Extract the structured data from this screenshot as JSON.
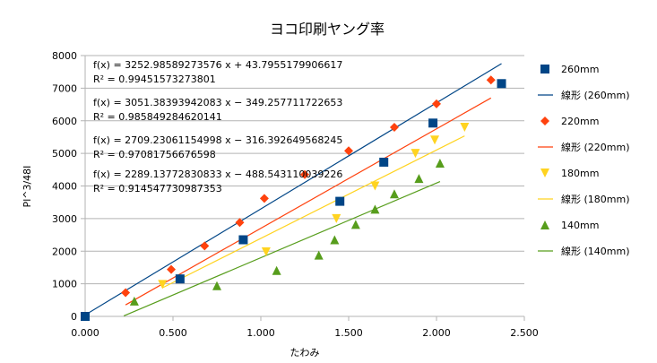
{
  "chart_data": {
    "type": "scatter",
    "title": "ヨコ印刷ヤング率",
    "xlabel": "たわみ",
    "ylabel": "Pl^3/48I",
    "xlim": [
      0,
      2.5
    ],
    "ylim": [
      0,
      8000
    ],
    "x_ticks": [
      "0.000",
      "0.500",
      "1.000",
      "1.500",
      "2.000",
      "2.500"
    ],
    "y_ticks": [
      "0",
      "1000",
      "2000",
      "3000",
      "4000",
      "5000",
      "6000",
      "7000",
      "8000"
    ],
    "grid": "horizontal",
    "legend_position": "right",
    "series": [
      {
        "name": "260mm",
        "marker": "square",
        "color": "#004586",
        "points": [
          [
            0.0,
            0
          ],
          [
            0.54,
            1150
          ],
          [
            0.9,
            2350
          ],
          [
            1.45,
            3530
          ],
          [
            1.7,
            4730
          ],
          [
            1.98,
            5930
          ],
          [
            2.37,
            7140
          ]
        ],
        "trend": {
          "name": "線形  (260mm)",
          "slope": 3252.98589273576,
          "intercept": 43.7955179906617,
          "x_range": [
            0.0,
            2.37
          ],
          "equation": "f(x) = 3252.98589273576 x + 43.7955179906617",
          "r2": "R² = 0.99451573273801"
        }
      },
      {
        "name": "220mm",
        "marker": "diamond",
        "color": "#ff420e",
        "points": [
          [
            0.23,
            730
          ],
          [
            0.49,
            1440
          ],
          [
            0.68,
            2160
          ],
          [
            0.88,
            2880
          ],
          [
            1.02,
            3620
          ],
          [
            1.25,
            4350
          ],
          [
            1.5,
            5080
          ],
          [
            1.76,
            5800
          ],
          [
            2.0,
            6520
          ],
          [
            2.31,
            7250
          ]
        ],
        "trend": {
          "name": "線形  (220mm)",
          "slope": 3051.38393942083,
          "intercept": -349.257711722653,
          "x_range": [
            0.23,
            2.31
          ],
          "equation": "f(x) = 3051.38393942083 x − 349.257711722653",
          "r2": "R² = 0.985849284620141"
        }
      },
      {
        "name": "180mm",
        "marker": "triangle-down",
        "color": "#ffd320",
        "points": [
          [
            0.44,
            980
          ],
          [
            1.03,
            1980
          ],
          [
            1.43,
            3000
          ],
          [
            1.65,
            4000
          ],
          [
            1.88,
            5000
          ],
          [
            1.99,
            5410
          ],
          [
            2.16,
            5800
          ]
        ],
        "trend": {
          "name": "線形  (180mm)",
          "slope": 2709.23061154998,
          "intercept": -316.392649568245,
          "x_range": [
            0.44,
            2.16
          ],
          "equation": "f(x) = 2709.23061154998 x − 316.392649568245",
          "r2": "R² = 0.97081756676598"
        }
      },
      {
        "name": "140mm",
        "marker": "triangle-up",
        "color": "#579d1c",
        "points": [
          [
            0.28,
            470
          ],
          [
            0.75,
            940
          ],
          [
            1.09,
            1410
          ],
          [
            1.33,
            1880
          ],
          [
            1.42,
            2350
          ],
          [
            1.54,
            2820
          ],
          [
            1.65,
            3290
          ],
          [
            1.76,
            3760
          ],
          [
            1.9,
            4230
          ],
          [
            2.02,
            4700
          ]
        ],
        "trend": {
          "name": "線形  (140mm)",
          "slope": 2289.13772830833,
          "intercept": -488.543110039226,
          "x_range": [
            0.22,
            2.02
          ],
          "equation": "f(x) = 2289.13772830833 x − 488.543110039226",
          "r2": "R² = 0.914547730987353"
        }
      }
    ]
  }
}
